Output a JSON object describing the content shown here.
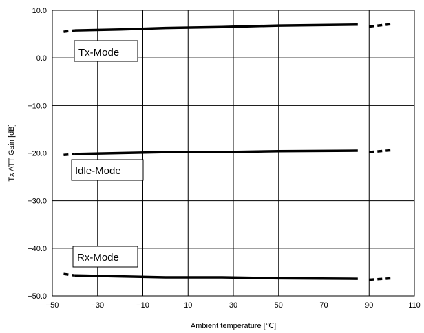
{
  "chart_data": {
    "type": "line",
    "xlabel": "Ambient temperature [℃]",
    "ylabel": "Tx ATT Gain [dB]",
    "xlim": [
      -50,
      110
    ],
    "ylim": [
      -50,
      10
    ],
    "xticks": [
      -50,
      -30,
      -10,
      10,
      30,
      50,
      70,
      90,
      110
    ],
    "yticks": [
      10,
      0,
      -10,
      -20,
      -30,
      -40,
      -50
    ],
    "xtick_labels": [
      "−50",
      "−30",
      "−10",
      "10",
      "30",
      "50",
      "70",
      "90",
      "110"
    ],
    "ytick_labels": [
      "10.0",
      "0.0",
      "−10.0",
      "−20.0",
      "−30.0",
      "−40.0",
      "−50.0"
    ],
    "grid": true,
    "series": [
      {
        "name": "Tx-Mode",
        "solid": [
          [
            -40,
            5.8
          ],
          [
            -20,
            6.0
          ],
          [
            0,
            6.3
          ],
          [
            25,
            6.5
          ],
          [
            50,
            6.8
          ],
          [
            85,
            7.0
          ]
        ],
        "dash_left": [
          [
            -45,
            5.5
          ],
          [
            -40,
            5.8
          ]
        ],
        "dash_right": [
          [
            90,
            6.6
          ],
          [
            100,
            7.1
          ]
        ]
      },
      {
        "name": "Idle-Mode",
        "solid": [
          [
            -40,
            -20.2
          ],
          [
            -20,
            -20.0
          ],
          [
            0,
            -19.8
          ],
          [
            25,
            -19.8
          ],
          [
            50,
            -19.6
          ],
          [
            85,
            -19.5
          ]
        ],
        "dash_left": [
          [
            -45,
            -20.4
          ],
          [
            -40,
            -20.2
          ]
        ],
        "dash_right": [
          [
            90,
            -19.8
          ],
          [
            100,
            -19.4
          ]
        ]
      },
      {
        "name": "Rx-Mode",
        "solid": [
          [
            -40,
            -45.7
          ],
          [
            -20,
            -45.9
          ],
          [
            0,
            -46.1
          ],
          [
            25,
            -46.1
          ],
          [
            50,
            -46.3
          ],
          [
            85,
            -46.4
          ]
        ],
        "dash_left": [
          [
            -45,
            -45.4
          ],
          [
            -40,
            -45.7
          ]
        ],
        "dash_right": [
          [
            90,
            -46.6
          ],
          [
            100,
            -46.3
          ]
        ]
      }
    ],
    "annotations": [
      "Tx-Mode",
      "Idle-Mode",
      "Rx-Mode"
    ]
  }
}
